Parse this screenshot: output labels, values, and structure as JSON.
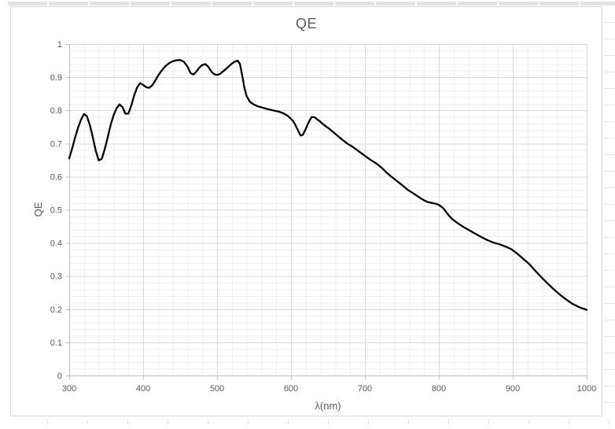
{
  "chart": {
    "border_color": "#D9D9D9",
    "background": "#FFFFFF"
  },
  "chart_data": {
    "type": "line",
    "title": "QE",
    "xlabel": "λ(nm)",
    "ylabel": "QE",
    "xlim": [
      300,
      1000
    ],
    "ylim": [
      0,
      1
    ],
    "x_major_ticks": [
      300,
      400,
      500,
      600,
      700,
      800,
      900,
      1000
    ],
    "x_tick_labels": [
      "300",
      "400",
      "500",
      "600",
      "700",
      "800",
      "900",
      "1000"
    ],
    "y_major_ticks": [
      0,
      0.1,
      0.2,
      0.3,
      0.4,
      0.5,
      0.6,
      0.7,
      0.8,
      0.9,
      1
    ],
    "y_tick_labels": [
      "0",
      "0.1",
      "0.2",
      "0.3",
      "0.4",
      "0.5",
      "0.6",
      "0.7",
      "0.8",
      "0.9",
      "1"
    ],
    "x_minor_step": 20,
    "y_minor_step": 0.02,
    "grid": {
      "major": true,
      "minor": true,
      "major_color": "#D9D9D9",
      "minor_color": "#EFEFEF"
    },
    "axis_color": "#BFBFBF",
    "label_color": "#595959",
    "legend": "none",
    "series": [
      {
        "name": "QE",
        "color": "#000000",
        "width": 2.3,
        "points": [
          [
            300,
            0.655
          ],
          [
            304,
            0.685
          ],
          [
            308,
            0.718
          ],
          [
            312,
            0.748
          ],
          [
            316,
            0.772
          ],
          [
            320,
            0.789
          ],
          [
            324,
            0.782
          ],
          [
            328,
            0.755
          ],
          [
            332,
            0.718
          ],
          [
            336,
            0.678
          ],
          [
            340,
            0.649
          ],
          [
            344,
            0.654
          ],
          [
            348,
            0.682
          ],
          [
            352,
            0.718
          ],
          [
            356,
            0.755
          ],
          [
            360,
            0.785
          ],
          [
            364,
            0.806
          ],
          [
            368,
            0.818
          ],
          [
            372,
            0.81
          ],
          [
            376,
            0.79
          ],
          [
            380,
            0.79
          ],
          [
            384,
            0.815
          ],
          [
            388,
            0.846
          ],
          [
            392,
            0.87
          ],
          [
            396,
            0.882
          ],
          [
            400,
            0.877
          ],
          [
            404,
            0.87
          ],
          [
            408,
            0.868
          ],
          [
            412,
            0.875
          ],
          [
            416,
            0.888
          ],
          [
            420,
            0.904
          ],
          [
            425,
            0.92
          ],
          [
            430,
            0.933
          ],
          [
            435,
            0.942
          ],
          [
            440,
            0.948
          ],
          [
            445,
            0.951
          ],
          [
            450,
            0.952
          ],
          [
            455,
            0.947
          ],
          [
            460,
            0.932
          ],
          [
            464,
            0.913
          ],
          [
            468,
            0.908
          ],
          [
            472,
            0.917
          ],
          [
            476,
            0.929
          ],
          [
            480,
            0.937
          ],
          [
            484,
            0.94
          ],
          [
            488,
            0.932
          ],
          [
            492,
            0.918
          ],
          [
            496,
            0.909
          ],
          [
            500,
            0.907
          ],
          [
            504,
            0.91
          ],
          [
            508,
            0.917
          ],
          [
            512,
            0.925
          ],
          [
            516,
            0.933
          ],
          [
            520,
            0.941
          ],
          [
            524,
            0.947
          ],
          [
            528,
            0.95
          ],
          [
            531,
            0.94
          ],
          [
            534,
            0.905
          ],
          [
            537,
            0.868
          ],
          [
            540,
            0.843
          ],
          [
            544,
            0.827
          ],
          [
            548,
            0.82
          ],
          [
            554,
            0.813
          ],
          [
            560,
            0.809
          ],
          [
            568,
            0.804
          ],
          [
            576,
            0.8
          ],
          [
            584,
            0.796
          ],
          [
            590,
            0.791
          ],
          [
            596,
            0.783
          ],
          [
            602,
            0.77
          ],
          [
            606,
            0.756
          ],
          [
            610,
            0.737
          ],
          [
            613,
            0.724
          ],
          [
            616,
            0.726
          ],
          [
            620,
            0.744
          ],
          [
            624,
            0.765
          ],
          [
            628,
            0.78
          ],
          [
            632,
            0.779
          ],
          [
            638,
            0.769
          ],
          [
            644,
            0.757
          ],
          [
            652,
            0.744
          ],
          [
            660,
            0.729
          ],
          [
            668,
            0.714
          ],
          [
            676,
            0.7
          ],
          [
            684,
            0.689
          ],
          [
            692,
            0.676
          ],
          [
            700,
            0.663
          ],
          [
            708,
            0.65
          ],
          [
            716,
            0.639
          ],
          [
            724,
            0.624
          ],
          [
            728,
            0.615
          ],
          [
            734,
            0.603
          ],
          [
            742,
            0.589
          ],
          [
            750,
            0.575
          ],
          [
            758,
            0.56
          ],
          [
            766,
            0.549
          ],
          [
            772,
            0.54
          ],
          [
            778,
            0.531
          ],
          [
            784,
            0.524
          ],
          [
            790,
            0.521
          ],
          [
            796,
            0.518
          ],
          [
            800,
            0.515
          ],
          [
            806,
            0.505
          ],
          [
            812,
            0.487
          ],
          [
            818,
            0.472
          ],
          [
            826,
            0.459
          ],
          [
            834,
            0.447
          ],
          [
            842,
            0.437
          ],
          [
            850,
            0.427
          ],
          [
            858,
            0.417
          ],
          [
            866,
            0.408
          ],
          [
            874,
            0.401
          ],
          [
            882,
            0.396
          ],
          [
            890,
            0.389
          ],
          [
            898,
            0.381
          ],
          [
            906,
            0.368
          ],
          [
            914,
            0.352
          ],
          [
            922,
            0.337
          ],
          [
            930,
            0.317
          ],
          [
            938,
            0.298
          ],
          [
            946,
            0.28
          ],
          [
            954,
            0.263
          ],
          [
            962,
            0.247
          ],
          [
            970,
            0.233
          ],
          [
            980,
            0.217
          ],
          [
            990,
            0.206
          ],
          [
            1000,
            0.198
          ]
        ]
      }
    ]
  }
}
